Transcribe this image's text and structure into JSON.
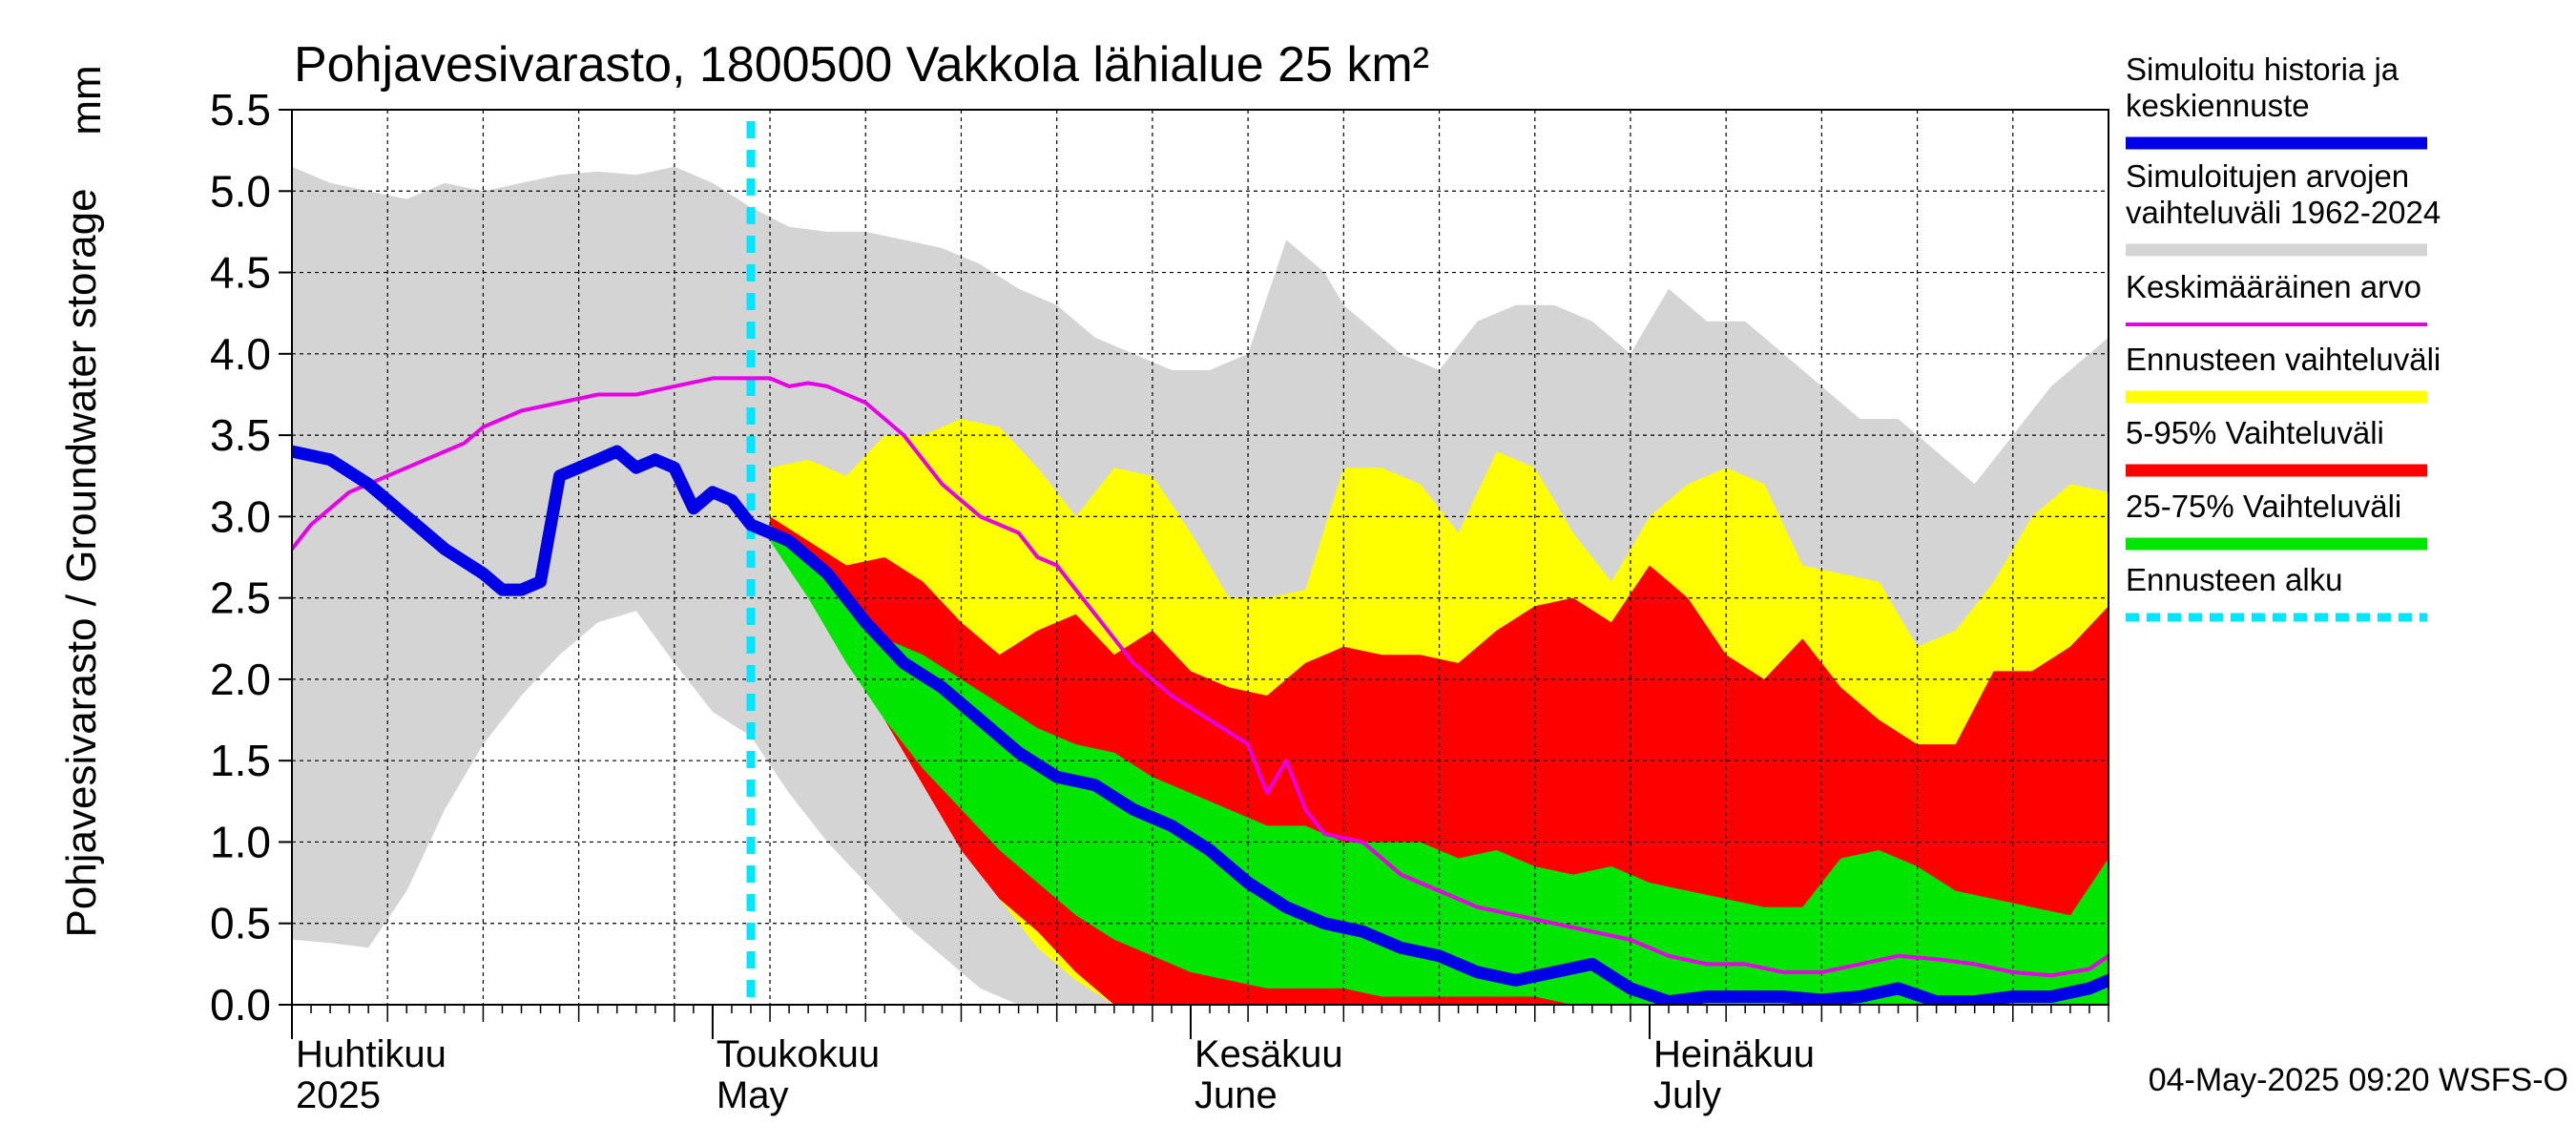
{
  "chart_data": {
    "type": "area",
    "title": "Pohjavesivarasto, 1800500 Vakkola lähialue 25 km²",
    "ylabel": "Pohjavesivarasto / Groundwater storage",
    "yunit": "mm",
    "ylim": [
      0,
      5.5
    ],
    "yticks": [
      "0.0",
      "0.5",
      "1.0",
      "1.5",
      "2.0",
      "2.5",
      "3.0",
      "3.5",
      "4.0",
      "4.5",
      "5.0",
      "5.5"
    ],
    "xlim": [
      0,
      95
    ],
    "grid": true,
    "months": [
      {
        "fi": "Huhtikuu",
        "en": "2025",
        "day": 0
      },
      {
        "fi": "Toukokuu",
        "en": "May",
        "day": 22
      },
      {
        "fi": "Kesäkuu",
        "en": "June",
        "day": 47
      },
      {
        "fi": "Heinäkuu",
        "en": "July",
        "day": 71
      }
    ],
    "forecast_start_day": 24,
    "timestamp": "04-May-2025 09:20 WSFS-O",
    "colors": {
      "history": "#0000e6",
      "range": "#d4d4d4",
      "mean": "#e600e6",
      "forecast_range": "#ffff00",
      "p5_95": "#ff0000",
      "p25_75": "#00e600",
      "forecast_start": "#00e6ff"
    },
    "legend": [
      {
        "label": "Simuloitu historia ja keskiennuste",
        "color": "#0000e6",
        "style": "thick"
      },
      {
        "label": "Simuloitujen arvojen vaihteluväli 1962-2024",
        "color": "#d4d4d4",
        "style": "thick"
      },
      {
        "label": "Keskimääräinen arvo",
        "color": "#e600e6",
        "style": "thin"
      },
      {
        "label": "Ennusteen vaihteluväli",
        "color": "#ffff00",
        "style": "thick"
      },
      {
        "label": "5-95% Vaihteluväli",
        "color": "#ff0000",
        "style": "thick"
      },
      {
        "label": "25-75% Vaihteluväli",
        "color": "#00e600",
        "style": "thick"
      },
      {
        "label": "Ennusteen alku",
        "color": "#00e6ff",
        "style": "dashed"
      }
    ],
    "series": [
      {
        "name": "Simuloitujen arvojen vaihteluväli 1962-2024",
        "kind": "band",
        "x": [
          0,
          2,
          4,
          6,
          8,
          10,
          12,
          14,
          16,
          18,
          20,
          22,
          24,
          26,
          28,
          30,
          32,
          34,
          36,
          38,
          40,
          42,
          44,
          46,
          48,
          50,
          52,
          54,
          55,
          56,
          58,
          60,
          62,
          64,
          66,
          68,
          70,
          72,
          74,
          76,
          78,
          80,
          82,
          84,
          86,
          88,
          90,
          92,
          94,
          95
        ],
        "upper": [
          5.15,
          5.05,
          5.0,
          4.95,
          5.05,
          5.0,
          5.05,
          5.1,
          5.12,
          5.1,
          5.15,
          5.05,
          4.9,
          4.78,
          4.75,
          4.75,
          4.7,
          4.65,
          4.55,
          4.4,
          4.3,
          4.1,
          4.0,
          3.9,
          3.9,
          4.0,
          4.7,
          4.5,
          4.3,
          4.2,
          4.0,
          3.9,
          4.2,
          4.3,
          4.3,
          4.2,
          4.0,
          4.4,
          4.2,
          4.2,
          4.0,
          3.8,
          3.6,
          3.6,
          3.4,
          3.2,
          3.5,
          3.8,
          4.0,
          4.1
        ],
        "lower": [
          0.4,
          0.38,
          0.35,
          0.7,
          1.2,
          1.6,
          1.9,
          2.15,
          2.35,
          2.42,
          2.1,
          1.8,
          1.65,
          1.3,
          1.0,
          0.75,
          0.5,
          0.3,
          0.1,
          0.0,
          0.0,
          0.0,
          0.0,
          0.0,
          0.0,
          0.0,
          0.0,
          0.0,
          0.0,
          0.0,
          0.0,
          0.0,
          0.0,
          0.0,
          0.0,
          0.0,
          0.0,
          0.0,
          0.0,
          0.0,
          0.0,
          0.0,
          0.0,
          0.0,
          0.0,
          0.0,
          0.0,
          0.0,
          0.0,
          0.0
        ]
      },
      {
        "name": "Ennusteen vaihteluväli",
        "kind": "band",
        "x": [
          25,
          27,
          29,
          31,
          33,
          35,
          37,
          39,
          41,
          43,
          45,
          47,
          49,
          51,
          53,
          55,
          57,
          59,
          61,
          63,
          65,
          67,
          69,
          71,
          73,
          75,
          77,
          79,
          81,
          83,
          85,
          87,
          89,
          91,
          93,
          95
        ],
        "upper": [
          3.3,
          3.35,
          3.25,
          3.5,
          3.5,
          3.6,
          3.55,
          3.3,
          3.0,
          3.3,
          3.25,
          2.9,
          2.5,
          2.5,
          2.55,
          3.3,
          3.3,
          3.2,
          2.9,
          3.4,
          3.3,
          2.9,
          2.6,
          3.0,
          3.2,
          3.3,
          3.2,
          2.7,
          2.65,
          2.6,
          2.2,
          2.3,
          2.6,
          3.0,
          3.2,
          3.15
        ],
        "lower": [
          3.0,
          2.6,
          2.2,
          1.8,
          1.4,
          1.0,
          0.65,
          0.35,
          0.15,
          0.0,
          0.0,
          0.0,
          0.0,
          0.0,
          0.0,
          0.0,
          0.0,
          0.0,
          0.0,
          0.0,
          0.0,
          0.0,
          0.0,
          0.0,
          0.0,
          0.0,
          0.0,
          0.0,
          0.0,
          0.0,
          0.0,
          0.0,
          0.0,
          0.0,
          0.0,
          0.0
        ]
      },
      {
        "name": "5-95% Vaihteluväli",
        "kind": "band",
        "x": [
          25,
          27,
          29,
          31,
          33,
          35,
          37,
          39,
          41,
          43,
          45,
          47,
          49,
          51,
          53,
          55,
          57,
          59,
          61,
          63,
          65,
          67,
          69,
          71,
          73,
          75,
          77,
          79,
          81,
          83,
          85,
          87,
          89,
          91,
          93,
          95
        ],
        "upper": [
          3.0,
          2.85,
          2.7,
          2.75,
          2.6,
          2.35,
          2.15,
          2.3,
          2.4,
          2.15,
          2.3,
          2.05,
          1.95,
          1.9,
          2.1,
          2.2,
          2.15,
          2.15,
          2.1,
          2.3,
          2.45,
          2.5,
          2.35,
          2.7,
          2.5,
          2.15,
          2.0,
          2.25,
          1.95,
          1.75,
          1.6,
          1.6,
          2.05,
          2.05,
          2.2,
          2.45
        ],
        "lower": [
          2.9,
          2.55,
          2.15,
          1.75,
          1.35,
          0.95,
          0.65,
          0.45,
          0.2,
          0.0,
          0.0,
          0.0,
          0.0,
          0.0,
          0.0,
          0.0,
          0.0,
          0.0,
          0.0,
          0.0,
          0.0,
          0.0,
          0.0,
          0.0,
          0.0,
          0.0,
          0.0,
          0.0,
          0.0,
          0.0,
          0.0,
          0.0,
          0.0,
          0.0,
          0.0,
          0.0
        ]
      },
      {
        "name": "25-75% Vaihteluväli",
        "kind": "band",
        "x": [
          25,
          27,
          29,
          31,
          33,
          35,
          37,
          39,
          41,
          43,
          45,
          47,
          49,
          51,
          53,
          55,
          57,
          59,
          61,
          63,
          65,
          67,
          69,
          71,
          73,
          75,
          77,
          79,
          81,
          83,
          85,
          87,
          89,
          91,
          93,
          95
        ],
        "upper": [
          2.95,
          2.75,
          2.5,
          2.25,
          2.15,
          2.0,
          1.85,
          1.7,
          1.6,
          1.55,
          1.4,
          1.3,
          1.2,
          1.1,
          1.1,
          1.0,
          1.0,
          1.0,
          0.9,
          0.95,
          0.85,
          0.8,
          0.85,
          0.75,
          0.7,
          0.65,
          0.6,
          0.6,
          0.9,
          0.95,
          0.85,
          0.7,
          0.65,
          0.6,
          0.55,
          0.9
        ],
        "lower": [
          2.85,
          2.5,
          2.1,
          1.75,
          1.45,
          1.2,
          0.95,
          0.75,
          0.55,
          0.4,
          0.3,
          0.2,
          0.15,
          0.1,
          0.1,
          0.1,
          0.05,
          0.05,
          0.05,
          0.05,
          0.05,
          0.0,
          0.0,
          0.0,
          0.0,
          0.0,
          0.0,
          0.0,
          0.0,
          0.0,
          0.0,
          0.0,
          0.0,
          0.0,
          0.0,
          0.0
        ]
      },
      {
        "name": "Keskimääräinen arvo",
        "kind": "line",
        "x": [
          0,
          1,
          2,
          3,
          4,
          6,
          8,
          9,
          10,
          12,
          14,
          16,
          18,
          20,
          22,
          24,
          25,
          26,
          27,
          28,
          30,
          32,
          34,
          36,
          38,
          39,
          40,
          41,
          42,
          44,
          46,
          48,
          50,
          51,
          52,
          53,
          54,
          56,
          58,
          60,
          62,
          64,
          66,
          68,
          70,
          72,
          74,
          76,
          78,
          80,
          82,
          84,
          86,
          88,
          90,
          92,
          94,
          95
        ],
        "y": [
          2.8,
          2.95,
          3.05,
          3.15,
          3.2,
          3.3,
          3.4,
          3.45,
          3.55,
          3.65,
          3.7,
          3.75,
          3.75,
          3.8,
          3.85,
          3.85,
          3.85,
          3.8,
          3.82,
          3.8,
          3.7,
          3.5,
          3.2,
          3.0,
          2.9,
          2.75,
          2.7,
          2.55,
          2.4,
          2.1,
          1.9,
          1.75,
          1.6,
          1.3,
          1.5,
          1.2,
          1.05,
          1.0,
          0.8,
          0.7,
          0.6,
          0.55,
          0.5,
          0.45,
          0.4,
          0.3,
          0.25,
          0.25,
          0.2,
          0.2,
          0.25,
          0.3,
          0.28,
          0.25,
          0.2,
          0.18,
          0.22,
          0.3
        ]
      },
      {
        "name": "Simuloitu historia ja keskiennuste",
        "kind": "line",
        "x": [
          0,
          2,
          4,
          6,
          8,
          10,
          11,
          12,
          13,
          14,
          16,
          17,
          18,
          19,
          20,
          21,
          22,
          23,
          24,
          25,
          26,
          27,
          28,
          29,
          30,
          32,
          34,
          36,
          38,
          40,
          42,
          44,
          46,
          48,
          50,
          52,
          54,
          56,
          58,
          60,
          62,
          64,
          66,
          68,
          70,
          72,
          74,
          76,
          78,
          80,
          82,
          84,
          86,
          88,
          90,
          92,
          94,
          95
        ],
        "y": [
          3.4,
          3.35,
          3.2,
          3.0,
          2.8,
          2.65,
          2.55,
          2.55,
          2.6,
          3.25,
          3.35,
          3.4,
          3.3,
          3.35,
          3.3,
          3.05,
          3.15,
          3.1,
          2.95,
          2.9,
          2.85,
          2.75,
          2.65,
          2.5,
          2.35,
          2.1,
          1.95,
          1.75,
          1.55,
          1.4,
          1.35,
          1.2,
          1.1,
          0.95,
          0.75,
          0.6,
          0.5,
          0.45,
          0.35,
          0.3,
          0.2,
          0.15,
          0.2,
          0.25,
          0.1,
          0.02,
          0.05,
          0.05,
          0.05,
          0.03,
          0.05,
          0.1,
          0.02,
          0.02,
          0.05,
          0.05,
          0.1,
          0.15
        ]
      }
    ]
  }
}
